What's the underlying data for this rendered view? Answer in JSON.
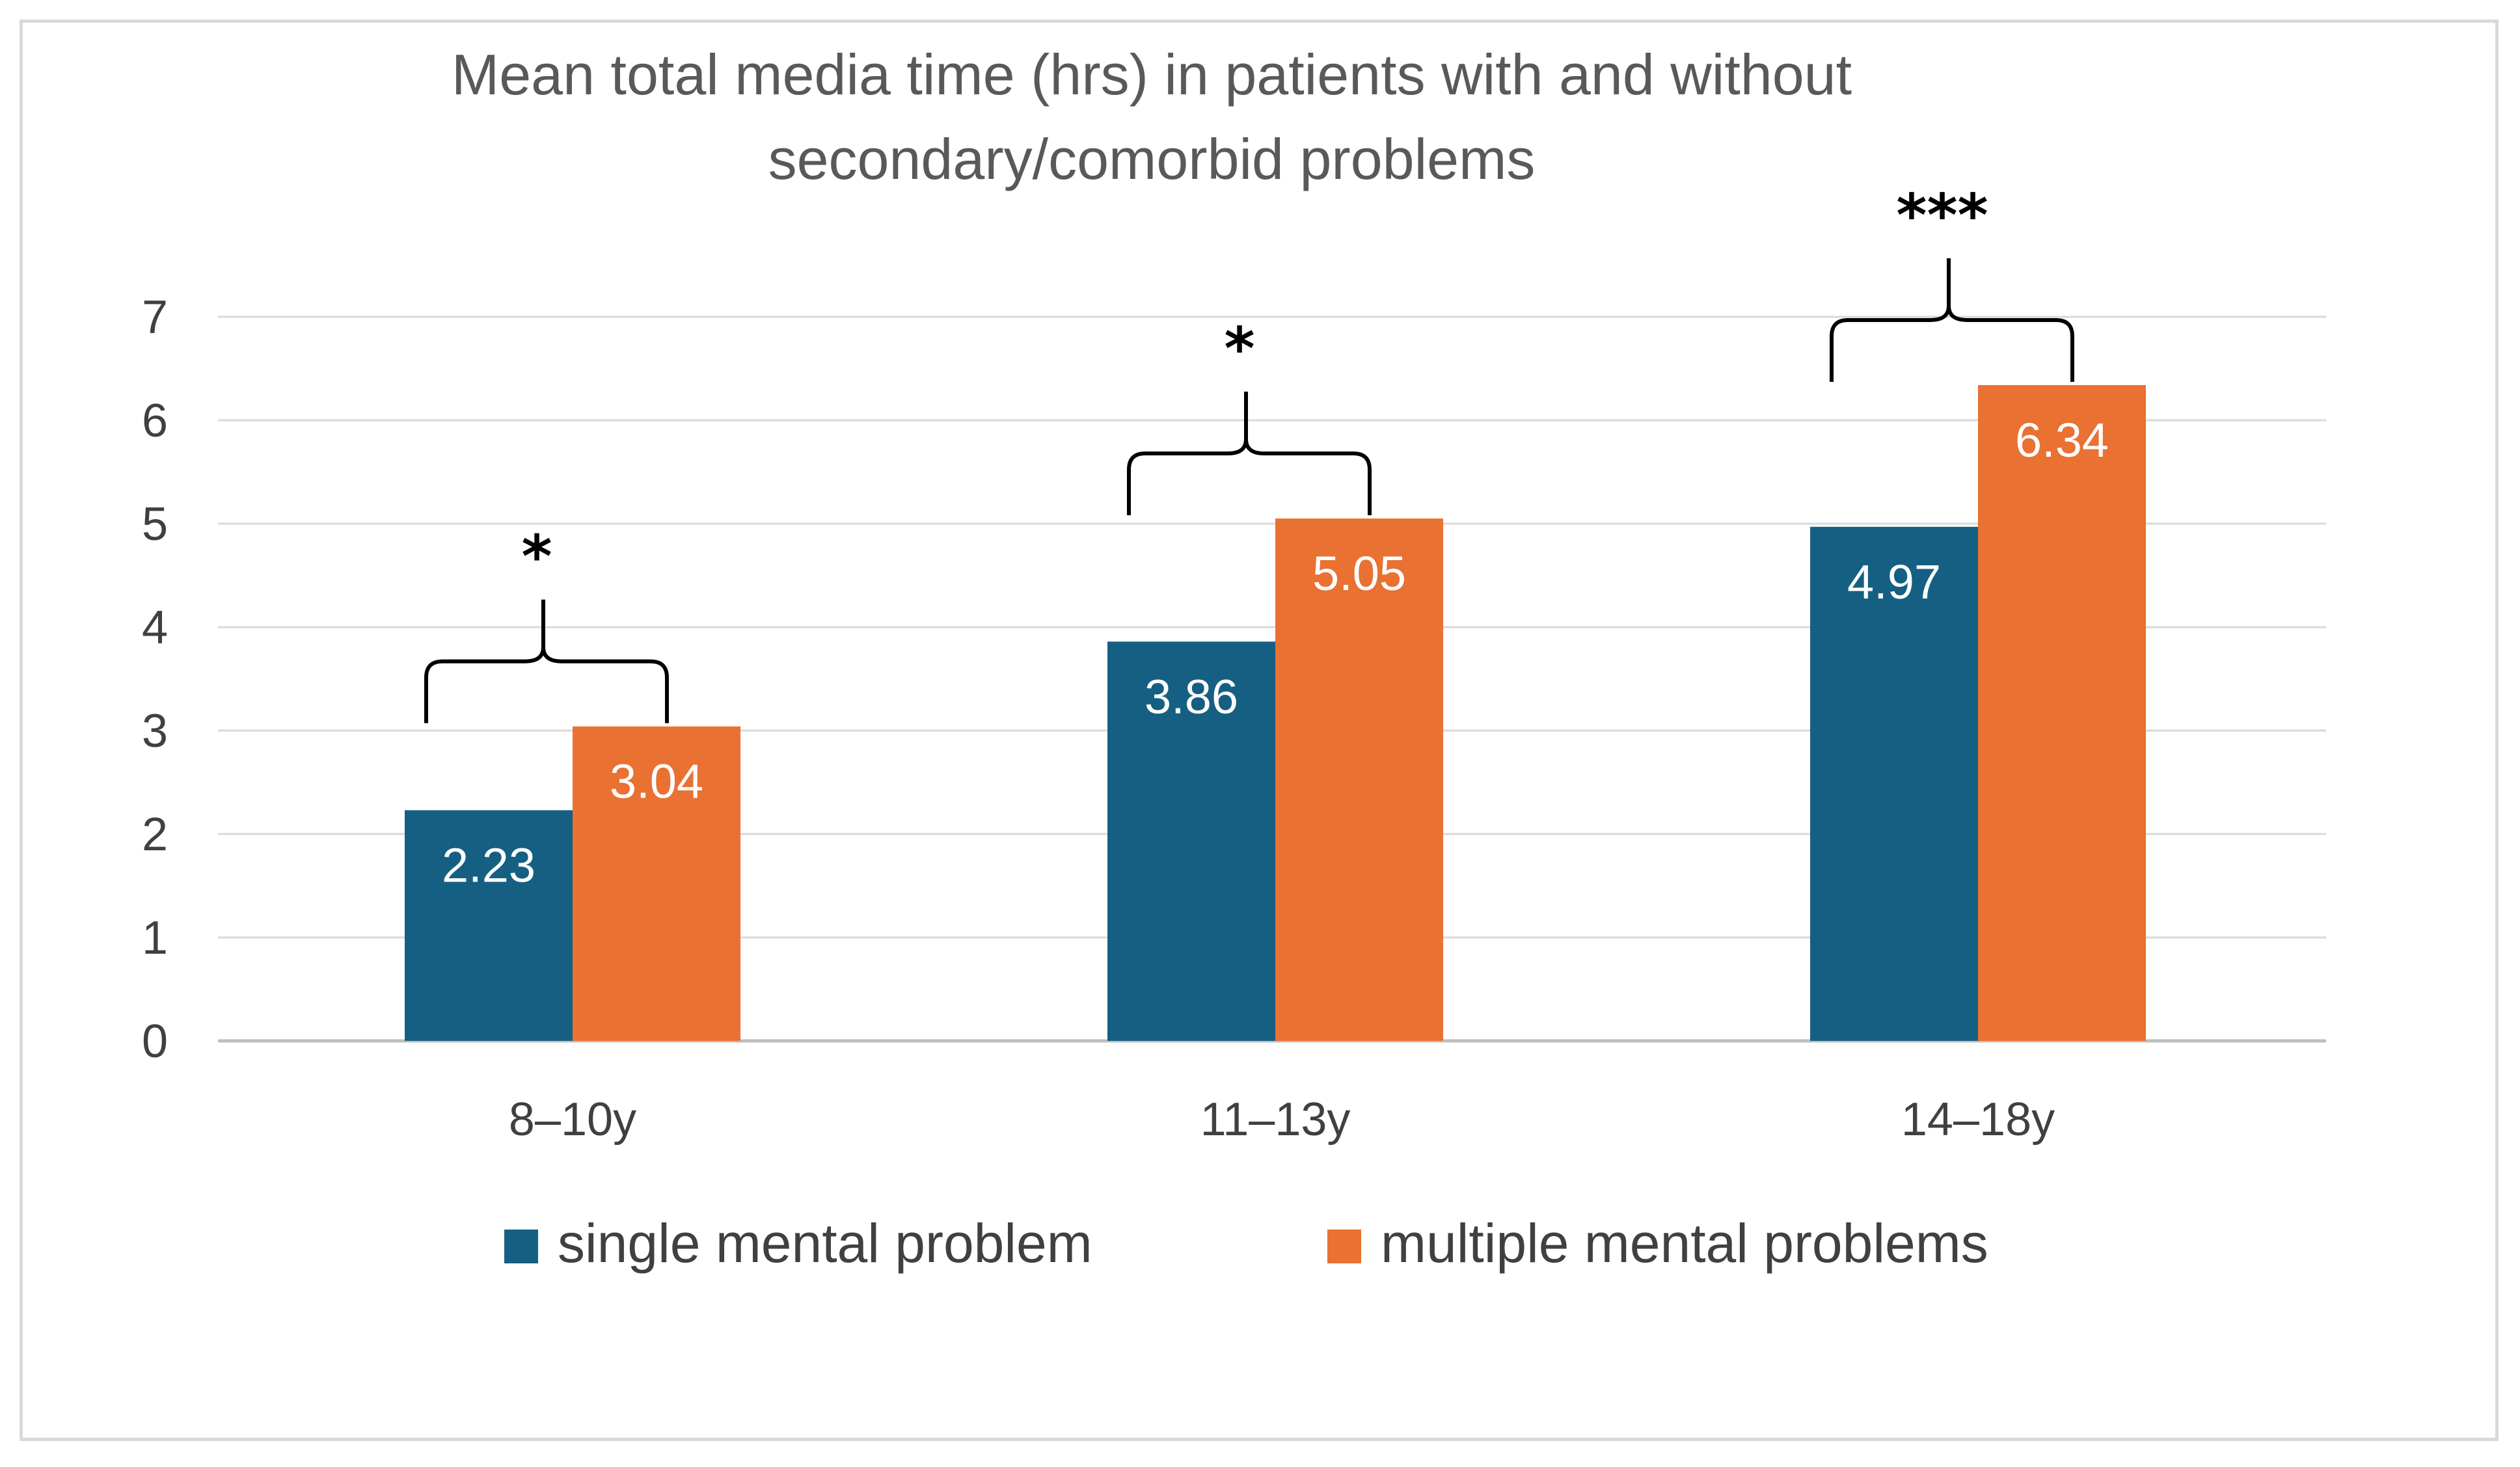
{
  "chart_data": {
    "type": "bar",
    "title_lines": [
      "Mean total media time (hrs) in patients with and without",
      "secondary/comorbid problems"
    ],
    "categories": [
      "8–10y",
      "11–13y",
      "14–18y"
    ],
    "series": [
      {
        "name": "single mental problem",
        "color": "#156082",
        "values": [
          2.23,
          3.86,
          4.97
        ],
        "labels": [
          "2.23",
          "3.86",
          "4.97"
        ]
      },
      {
        "name": "multiple mental problems",
        "color": "#E97132",
        "values": [
          3.04,
          5.05,
          6.34
        ],
        "labels": [
          "3.04",
          "5.05",
          "6.34"
        ]
      }
    ],
    "ylim": [
      0,
      7
    ],
    "yticks": [
      "0",
      "1",
      "2",
      "3",
      "4",
      "5",
      "6",
      "7"
    ],
    "gridlines": true,
    "legend_position": "bottom",
    "significance": [
      "*",
      "*",
      "***"
    ]
  }
}
